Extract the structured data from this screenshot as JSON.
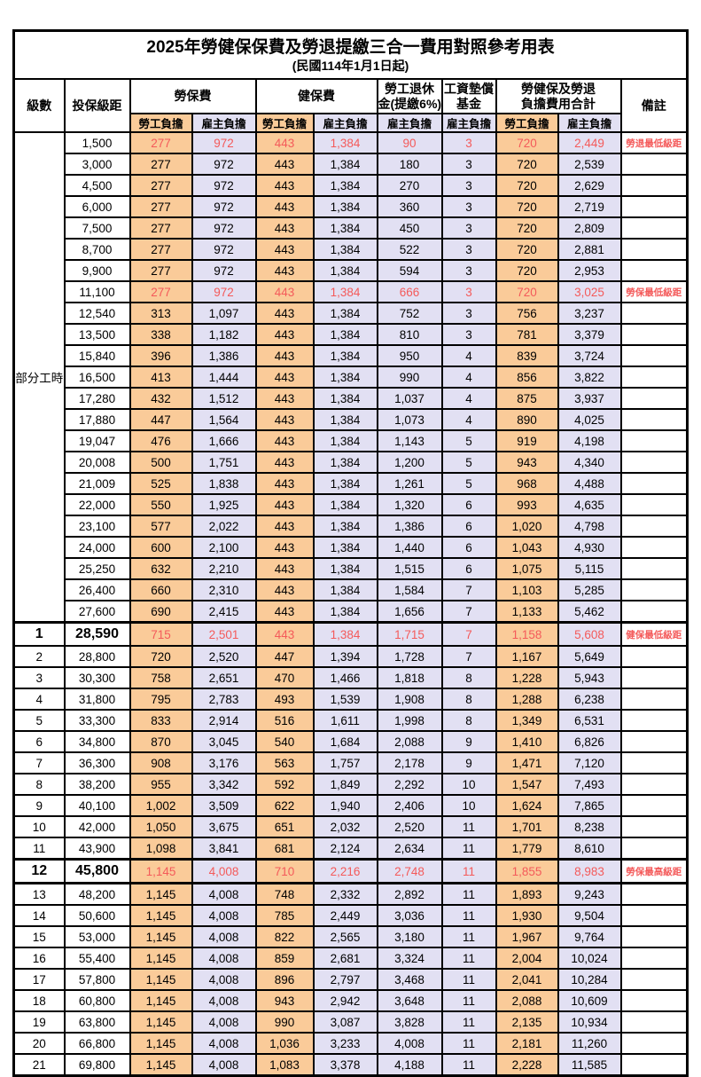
{
  "title": "2025年勞健保保費及勞退提繳三合一費用對照參考用表",
  "subtitle": "(民國114年1月1日起)",
  "colors": {
    "employee_bg": "#FACB99",
    "employer_bg": "#E2E0F3",
    "highlight_text": "#F45A5A"
  },
  "headers": {
    "level": "級數",
    "bracket": "投保級距",
    "labor_ins": "勞保費",
    "health_ins": "健保費",
    "pension_line1": "勞工退休",
    "pension_line2": "金(提繳6%)",
    "fund_line1": "工資墊償",
    "fund_line2": "基金",
    "total_line1": "勞健保及勞退",
    "total_line2": "負擔費用合計",
    "employee": "勞工負擔",
    "employer": "雇主負擔",
    "remark": "備註"
  },
  "part_time_label": "部分工時",
  "rows": [
    {
      "level": "",
      "bracket": "1,500",
      "values": [
        "277",
        "972",
        "443",
        "1,384",
        "90",
        "3",
        "720",
        "2,449"
      ],
      "remark": "勞退最低級距",
      "red": true,
      "tt": false,
      "tb": false,
      "big": false
    },
    {
      "level": "",
      "bracket": "3,000",
      "values": [
        "277",
        "972",
        "443",
        "1,384",
        "180",
        "3",
        "720",
        "2,539"
      ],
      "remark": "",
      "red": false,
      "tt": false,
      "tb": false,
      "big": false
    },
    {
      "level": "",
      "bracket": "4,500",
      "values": [
        "277",
        "972",
        "443",
        "1,384",
        "270",
        "3",
        "720",
        "2,629"
      ],
      "remark": "",
      "red": false,
      "tt": false,
      "tb": false,
      "big": false
    },
    {
      "level": "",
      "bracket": "6,000",
      "values": [
        "277",
        "972",
        "443",
        "1,384",
        "360",
        "3",
        "720",
        "2,719"
      ],
      "remark": "",
      "red": false,
      "tt": false,
      "tb": false,
      "big": false
    },
    {
      "level": "",
      "bracket": "7,500",
      "values": [
        "277",
        "972",
        "443",
        "1,384",
        "450",
        "3",
        "720",
        "2,809"
      ],
      "remark": "",
      "red": false,
      "tt": false,
      "tb": false,
      "big": false
    },
    {
      "level": "",
      "bracket": "8,700",
      "values": [
        "277",
        "972",
        "443",
        "1,384",
        "522",
        "3",
        "720",
        "2,881"
      ],
      "remark": "",
      "red": false,
      "tt": false,
      "tb": false,
      "big": false
    },
    {
      "level": "",
      "bracket": "9,900",
      "values": [
        "277",
        "972",
        "443",
        "1,384",
        "594",
        "3",
        "720",
        "2,953"
      ],
      "remark": "",
      "red": false,
      "tt": false,
      "tb": false,
      "big": false
    },
    {
      "level": "",
      "bracket": "11,100",
      "values": [
        "277",
        "972",
        "443",
        "1,384",
        "666",
        "3",
        "720",
        "3,025"
      ],
      "remark": "勞保最低級距",
      "red": true,
      "tt": false,
      "tb": false,
      "big": false
    },
    {
      "level": "",
      "bracket": "12,540",
      "values": [
        "313",
        "1,097",
        "443",
        "1,384",
        "752",
        "3",
        "756",
        "3,237"
      ],
      "remark": "",
      "red": false,
      "tt": false,
      "tb": false,
      "big": false
    },
    {
      "level": "",
      "bracket": "13,500",
      "values": [
        "338",
        "1,182",
        "443",
        "1,384",
        "810",
        "3",
        "781",
        "3,379"
      ],
      "remark": "",
      "red": false,
      "tt": false,
      "tb": false,
      "big": false
    },
    {
      "level": "",
      "bracket": "15,840",
      "values": [
        "396",
        "1,386",
        "443",
        "1,384",
        "950",
        "4",
        "839",
        "3,724"
      ],
      "remark": "",
      "red": false,
      "tt": false,
      "tb": false,
      "big": false
    },
    {
      "level": "",
      "bracket": "16,500",
      "values": [
        "413",
        "1,444",
        "443",
        "1,384",
        "990",
        "4",
        "856",
        "3,822"
      ],
      "remark": "",
      "red": false,
      "tt": false,
      "tb": false,
      "big": false
    },
    {
      "level": "",
      "bracket": "17,280",
      "values": [
        "432",
        "1,512",
        "443",
        "1,384",
        "1,037",
        "4",
        "875",
        "3,937"
      ],
      "remark": "",
      "red": false,
      "tt": false,
      "tb": false,
      "big": false
    },
    {
      "level": "",
      "bracket": "17,880",
      "values": [
        "447",
        "1,564",
        "443",
        "1,384",
        "1,073",
        "4",
        "890",
        "4,025"
      ],
      "remark": "",
      "red": false,
      "tt": false,
      "tb": false,
      "big": false
    },
    {
      "level": "",
      "bracket": "19,047",
      "values": [
        "476",
        "1,666",
        "443",
        "1,384",
        "1,143",
        "5",
        "919",
        "4,198"
      ],
      "remark": "",
      "red": false,
      "tt": false,
      "tb": false,
      "big": false
    },
    {
      "level": "",
      "bracket": "20,008",
      "values": [
        "500",
        "1,751",
        "443",
        "1,384",
        "1,200",
        "5",
        "943",
        "4,340"
      ],
      "remark": "",
      "red": false,
      "tt": false,
      "tb": false,
      "big": false
    },
    {
      "level": "",
      "bracket": "21,009",
      "values": [
        "525",
        "1,838",
        "443",
        "1,384",
        "1,261",
        "5",
        "968",
        "4,488"
      ],
      "remark": "",
      "red": false,
      "tt": false,
      "tb": false,
      "big": false
    },
    {
      "level": "",
      "bracket": "22,000",
      "values": [
        "550",
        "1,925",
        "443",
        "1,384",
        "1,320",
        "6",
        "993",
        "4,635"
      ],
      "remark": "",
      "red": false,
      "tt": false,
      "tb": false,
      "big": false
    },
    {
      "level": "",
      "bracket": "23,100",
      "values": [
        "577",
        "2,022",
        "443",
        "1,384",
        "1,386",
        "6",
        "1,020",
        "4,798"
      ],
      "remark": "",
      "red": false,
      "tt": false,
      "tb": false,
      "big": false
    },
    {
      "level": "",
      "bracket": "24,000",
      "values": [
        "600",
        "2,100",
        "443",
        "1,384",
        "1,440",
        "6",
        "1,043",
        "4,930"
      ],
      "remark": "",
      "red": false,
      "tt": false,
      "tb": false,
      "big": false
    },
    {
      "level": "",
      "bracket": "25,250",
      "values": [
        "632",
        "2,210",
        "443",
        "1,384",
        "1,515",
        "6",
        "1,075",
        "5,115"
      ],
      "remark": "",
      "red": false,
      "tt": false,
      "tb": false,
      "big": false
    },
    {
      "level": "",
      "bracket": "26,400",
      "values": [
        "660",
        "2,310",
        "443",
        "1,384",
        "1,584",
        "7",
        "1,103",
        "5,285"
      ],
      "remark": "",
      "red": false,
      "tt": false,
      "tb": false,
      "big": false
    },
    {
      "level": "",
      "bracket": "27,600",
      "values": [
        "690",
        "2,415",
        "443",
        "1,384",
        "1,656",
        "7",
        "1,133",
        "5,462"
      ],
      "remark": "",
      "red": false,
      "tt": false,
      "tb": false,
      "big": false
    },
    {
      "level": "1",
      "bracket": "28,590",
      "values": [
        "715",
        "2,501",
        "443",
        "1,384",
        "1,715",
        "7",
        "1,158",
        "5,608"
      ],
      "remark": "健保最低級距",
      "red": true,
      "tt": true,
      "tb": false,
      "big": true
    },
    {
      "level": "2",
      "bracket": "28,800",
      "values": [
        "720",
        "2,520",
        "447",
        "1,394",
        "1,728",
        "7",
        "1,167",
        "5,649"
      ],
      "remark": "",
      "red": false,
      "tt": false,
      "tb": false,
      "big": false
    },
    {
      "level": "3",
      "bracket": "30,300",
      "values": [
        "758",
        "2,651",
        "470",
        "1,466",
        "1,818",
        "8",
        "1,228",
        "5,943"
      ],
      "remark": "",
      "red": false,
      "tt": false,
      "tb": false,
      "big": false
    },
    {
      "level": "4",
      "bracket": "31,800",
      "values": [
        "795",
        "2,783",
        "493",
        "1,539",
        "1,908",
        "8",
        "1,288",
        "6,238"
      ],
      "remark": "",
      "red": false,
      "tt": false,
      "tb": false,
      "big": false
    },
    {
      "level": "5",
      "bracket": "33,300",
      "values": [
        "833",
        "2,914",
        "516",
        "1,611",
        "1,998",
        "8",
        "1,349",
        "6,531"
      ],
      "remark": "",
      "red": false,
      "tt": false,
      "tb": false,
      "big": false
    },
    {
      "level": "6",
      "bracket": "34,800",
      "values": [
        "870",
        "3,045",
        "540",
        "1,684",
        "2,088",
        "9",
        "1,410",
        "6,826"
      ],
      "remark": "",
      "red": false,
      "tt": false,
      "tb": false,
      "big": false
    },
    {
      "level": "7",
      "bracket": "36,300",
      "values": [
        "908",
        "3,176",
        "563",
        "1,757",
        "2,178",
        "9",
        "1,471",
        "7,120"
      ],
      "remark": "",
      "red": false,
      "tt": false,
      "tb": false,
      "big": false
    },
    {
      "level": "8",
      "bracket": "38,200",
      "values": [
        "955",
        "3,342",
        "592",
        "1,849",
        "2,292",
        "10",
        "1,547",
        "7,493"
      ],
      "remark": "",
      "red": false,
      "tt": false,
      "tb": false,
      "big": false
    },
    {
      "level": "9",
      "bracket": "40,100",
      "values": [
        "1,002",
        "3,509",
        "622",
        "1,940",
        "2,406",
        "10",
        "1,624",
        "7,865"
      ],
      "remark": "",
      "red": false,
      "tt": false,
      "tb": false,
      "big": false
    },
    {
      "level": "10",
      "bracket": "42,000",
      "values": [
        "1,050",
        "3,675",
        "651",
        "2,032",
        "2,520",
        "11",
        "1,701",
        "8,238"
      ],
      "remark": "",
      "red": false,
      "tt": false,
      "tb": false,
      "big": false
    },
    {
      "level": "11",
      "bracket": "43,900",
      "values": [
        "1,098",
        "3,841",
        "681",
        "2,124",
        "2,634",
        "11",
        "1,779",
        "8,610"
      ],
      "remark": "",
      "red": false,
      "tt": false,
      "tb": false,
      "big": false
    },
    {
      "level": "12",
      "bracket": "45,800",
      "values": [
        "1,145",
        "4,008",
        "710",
        "2,216",
        "2,748",
        "11",
        "1,855",
        "8,983"
      ],
      "remark": "勞保最高級距",
      "red": true,
      "tt": true,
      "tb": true,
      "big": true
    },
    {
      "level": "13",
      "bracket": "48,200",
      "values": [
        "1,145",
        "4,008",
        "748",
        "2,332",
        "2,892",
        "11",
        "1,893",
        "9,243"
      ],
      "remark": "",
      "red": false,
      "tt": false,
      "tb": false,
      "big": false
    },
    {
      "level": "14",
      "bracket": "50,600",
      "values": [
        "1,145",
        "4,008",
        "785",
        "2,449",
        "3,036",
        "11",
        "1,930",
        "9,504"
      ],
      "remark": "",
      "red": false,
      "tt": false,
      "tb": false,
      "big": false
    },
    {
      "level": "15",
      "bracket": "53,000",
      "values": [
        "1,145",
        "4,008",
        "822",
        "2,565",
        "3,180",
        "11",
        "1,967",
        "9,764"
      ],
      "remark": "",
      "red": false,
      "tt": false,
      "tb": false,
      "big": false
    },
    {
      "level": "16",
      "bracket": "55,400",
      "values": [
        "1,145",
        "4,008",
        "859",
        "2,681",
        "3,324",
        "11",
        "2,004",
        "10,024"
      ],
      "remark": "",
      "red": false,
      "tt": false,
      "tb": false,
      "big": false
    },
    {
      "level": "17",
      "bracket": "57,800",
      "values": [
        "1,145",
        "4,008",
        "896",
        "2,797",
        "3,468",
        "11",
        "2,041",
        "10,284"
      ],
      "remark": "",
      "red": false,
      "tt": false,
      "tb": false,
      "big": false
    },
    {
      "level": "18",
      "bracket": "60,800",
      "values": [
        "1,145",
        "4,008",
        "943",
        "2,942",
        "3,648",
        "11",
        "2,088",
        "10,609"
      ],
      "remark": "",
      "red": false,
      "tt": false,
      "tb": false,
      "big": false
    },
    {
      "level": "19",
      "bracket": "63,800",
      "values": [
        "1,145",
        "4,008",
        "990",
        "3,087",
        "3,828",
        "11",
        "2,135",
        "10,934"
      ],
      "remark": "",
      "red": false,
      "tt": false,
      "tb": false,
      "big": false
    },
    {
      "level": "20",
      "bracket": "66,800",
      "values": [
        "1,145",
        "4,008",
        "1,036",
        "3,233",
        "4,008",
        "11",
        "2,181",
        "11,260"
      ],
      "remark": "",
      "red": false,
      "tt": false,
      "tb": false,
      "big": false
    },
    {
      "level": "21",
      "bracket": "69,800",
      "values": [
        "1,145",
        "4,008",
        "1,083",
        "3,378",
        "4,188",
        "11",
        "2,228",
        "11,585"
      ],
      "remark": "",
      "red": false,
      "tt": false,
      "tb": false,
      "big": false
    }
  ]
}
